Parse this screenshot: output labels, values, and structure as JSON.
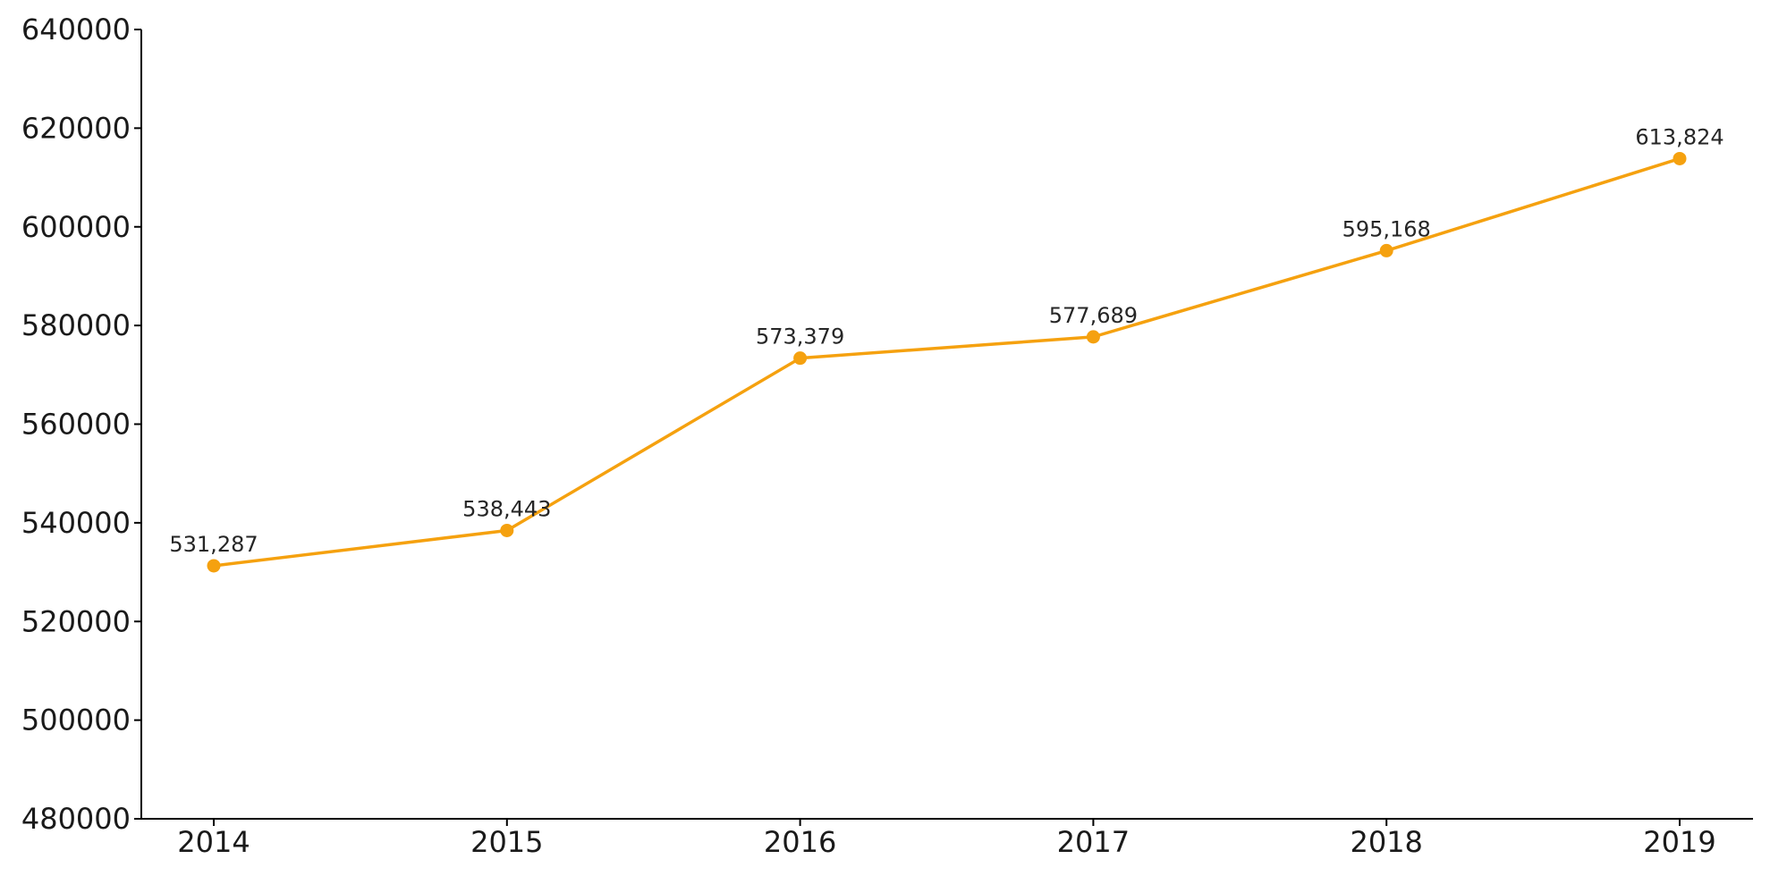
{
  "chart_data": {
    "type": "line",
    "title": "",
    "xlabel": "",
    "ylabel": "",
    "x": [
      "2014",
      "2015",
      "2016",
      "2017",
      "2018",
      "2019"
    ],
    "series": [
      {
        "values": [
          531287,
          538443,
          573379,
          577689,
          595168,
          613824
        ],
        "data_labels": [
          "531,287",
          "538,443",
          "573,379",
          "577,689",
          "595,168",
          "613,824"
        ],
        "color": "#f5a10f",
        "marker": "circle"
      }
    ],
    "ylim": [
      480000,
      640000
    ],
    "yticks": [
      480000,
      500000,
      520000,
      540000,
      560000,
      580000,
      600000,
      620000,
      640000
    ],
    "ytick_labels": [
      "480000",
      "500000",
      "520000",
      "540000",
      "560000",
      "580000",
      "600000",
      "620000",
      "640000"
    ],
    "grid": false,
    "legend": "none"
  }
}
